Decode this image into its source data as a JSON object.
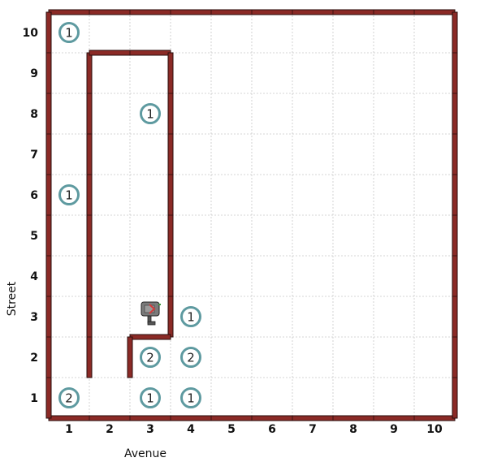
{
  "world": {
    "avenues": 10,
    "streets": 10,
    "xlabel": "Avenue",
    "ylabel": "Street",
    "avenue_ticks": [
      "1",
      "2",
      "3",
      "4",
      "5",
      "6",
      "7",
      "8",
      "9",
      "10"
    ],
    "street_ticks": [
      "1",
      "2",
      "3",
      "4",
      "5",
      "6",
      "7",
      "8",
      "9",
      "10"
    ]
  },
  "colors": {
    "wall": "#8b2a26",
    "grid": "#c8c8c8",
    "beeper": "#5e9aa0",
    "robot_body": "#7b7b7b",
    "robot_arrow": "#d43a3a"
  },
  "beepers": [
    {
      "avenue": 1,
      "street": 10,
      "count": "1"
    },
    {
      "avenue": 3,
      "street": 8,
      "count": "1"
    },
    {
      "avenue": 1,
      "street": 6,
      "count": "1"
    },
    {
      "avenue": 4,
      "street": 3,
      "count": "1"
    },
    {
      "avenue": 3,
      "street": 2,
      "count": "2"
    },
    {
      "avenue": 4,
      "street": 2,
      "count": "2"
    },
    {
      "avenue": 1,
      "street": 1,
      "count": "2"
    },
    {
      "avenue": 3,
      "street": 1,
      "count": "1"
    },
    {
      "avenue": 4,
      "street": 1,
      "count": "1"
    }
  ],
  "walls": [
    {
      "orientation": "vertical",
      "between_avenues": [
        1,
        2
      ],
      "streets": [
        1.5,
        9.5
      ]
    },
    {
      "orientation": "horizontal",
      "between_streets": [
        9,
        10
      ],
      "avenues": [
        1.5,
        3.5
      ]
    },
    {
      "orientation": "vertical",
      "between_avenues": [
        3,
        4
      ],
      "streets": [
        2.5,
        9.5
      ]
    },
    {
      "orientation": "horizontal",
      "between_streets": [
        2,
        3
      ],
      "avenues": [
        2.5,
        3.5
      ]
    },
    {
      "orientation": "vertical",
      "between_avenues": [
        2,
        3
      ],
      "streets": [
        1.5,
        2.5
      ]
    }
  ],
  "robot": {
    "avenue": 3,
    "street": 3,
    "facing": "east"
  }
}
